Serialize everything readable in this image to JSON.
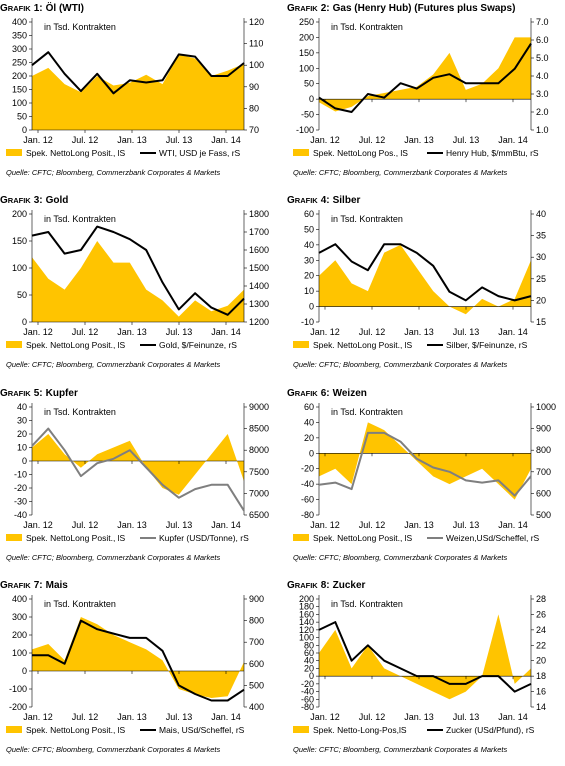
{
  "colors": {
    "area": "#FFC400",
    "line_black": "#000000",
    "line_gray": "#7f7f7f",
    "axis": "#000000",
    "source_text": "#000000"
  },
  "charts": [
    {
      "prefix": "G",
      "prefix_small": "RAFIK",
      "number": "1:",
      "title": "Öl (WTI)",
      "unit_label": "in Tsd. Kontrakten",
      "left_axis": {
        "ticks": [
          0,
          50,
          100,
          150,
          200,
          250,
          300,
          350,
          400
        ],
        "min": 0,
        "max": 400
      },
      "right_axis": {
        "ticks": [
          70,
          80,
          90,
          100,
          110,
          120
        ],
        "min": 70,
        "max": 120
      },
      "x_labels": [
        "Jan. 12",
        "Jul. 12",
        "Jan. 13",
        "Jul. 13",
        "Jan. 14"
      ],
      "legend": {
        "area": "Spek. NettoLong Posit., lS",
        "line": "WTI, USD je Fass, rS"
      },
      "line_color": "black",
      "source": "Quelle: CFTC; Bloomberg, Commerzbank Corporates & Markets"
    },
    {
      "prefix": "G",
      "prefix_small": "RAFIK",
      "number": "2:",
      "title": "Gas (Henry Hub) (Futures plus Swaps)",
      "unit_label": "in Tsd. Kontrakten",
      "left_axis": {
        "ticks": [
          -100,
          -50,
          0,
          50,
          100,
          150,
          200,
          250
        ],
        "min": -100,
        "max": 250
      },
      "right_axis": {
        "ticks": [
          1.0,
          2.0,
          3.0,
          4.0,
          5.0,
          6.0,
          7.0
        ],
        "min": 1.0,
        "max": 7.0
      },
      "x_labels": [
        "Jan. 12",
        "Jul. 12",
        "Jan. 13",
        "Jul. 13",
        "Jan. 14"
      ],
      "legend": {
        "area": "Spek. NettoLong Pos., lS",
        "line": "Henry Hub, $/mmBtu, rS"
      },
      "line_color": "black",
      "source": "Quelle: CFTC; Bloomberg, Commerzbank Corporates & Markets"
    },
    {
      "prefix": "G",
      "prefix_small": "RAFIK",
      "number": "3:",
      "title": "Gold",
      "unit_label": "in Tsd. Kontrakten",
      "left_axis": {
        "ticks": [
          0,
          50,
          100,
          150,
          200
        ],
        "min": 0,
        "max": 200
      },
      "right_axis": {
        "ticks": [
          1200,
          1300,
          1400,
          1500,
          1600,
          1700,
          1800
        ],
        "min": 1200,
        "max": 1800
      },
      "x_labels": [
        "Jan. 12",
        "Jul. 12",
        "Jan. 13",
        "Jul. 13",
        "Jan. 14"
      ],
      "legend": {
        "area": "Spek. NettoLong Posit., lS",
        "line": "Gold, $/Feinunze, rS"
      },
      "line_color": "black",
      "source": "Quelle: CFTC; Bloomberg, Commerzbank Corporates & Markets"
    },
    {
      "prefix": "G",
      "prefix_small": "RAFIK",
      "number": "4:",
      "title": "Silber",
      "unit_label": "in Tsd. Kontrakten",
      "left_axis": {
        "ticks": [
          -10,
          0,
          10,
          20,
          30,
          40,
          50,
          60
        ],
        "min": -10,
        "max": 60
      },
      "right_axis": {
        "ticks": [
          15,
          20,
          25,
          30,
          35,
          40
        ],
        "min": 15,
        "max": 40
      },
      "x_labels": [
        "Jan. 12",
        "Jul. 12",
        "Jan. 13",
        "Jul. 13",
        "Jan. 14"
      ],
      "legend": {
        "area": "Spek. NettoLong Posit., lS",
        "line": "Silber, $/Feinunze, rS"
      },
      "line_color": "black",
      "source": "Quelle: CFTC; Bloomberg, Commerzbank Corporates & Markets"
    },
    {
      "prefix": "G",
      "prefix_small": "RAFIK",
      "number": "5:",
      "title": "Kupfer",
      "unit_label": "in Tsd. Kontrakten",
      "left_axis": {
        "ticks": [
          -40,
          -30,
          -20,
          -10,
          0,
          10,
          20,
          30,
          40
        ],
        "min": -40,
        "max": 40
      },
      "right_axis": {
        "ticks": [
          6500,
          7000,
          7500,
          8000,
          8500,
          9000
        ],
        "min": 6500,
        "max": 9000
      },
      "x_labels": [
        "Jan. 12",
        "Jul. 12",
        "Jan. 13",
        "Jul. 13",
        "Jan. 14"
      ],
      "legend": {
        "area": "Spek. NettoLong Posit., lS",
        "line": "Kupfer (USD/Tonne), rS"
      },
      "line_color": "gray",
      "source": "Quelle: CFTC; Bloomberg, Commerzbank Corporates & Markets"
    },
    {
      "prefix": "G",
      "prefix_small": "RAFIK",
      "number": "6:",
      "title": "Weizen",
      "unit_label": "in Tsd. Kontrakten",
      "left_axis": {
        "ticks": [
          -80,
          -60,
          -40,
          -20,
          0,
          20,
          40,
          60
        ],
        "min": -80,
        "max": 60
      },
      "right_axis": {
        "ticks": [
          500,
          600,
          700,
          800,
          900,
          1000
        ],
        "min": 500,
        "max": 1000
      },
      "x_labels": [
        "Jan. 12",
        "Jul. 12",
        "Jan. 13",
        "Jul. 13",
        "Jan. 14"
      ],
      "legend": {
        "area": "Spek. NettoLong Posit., lS",
        "line": "Weizen,USd/Scheffel, rS"
      },
      "line_color": "gray",
      "source": "Quelle: CFTC; Bloomberg, Commerzbank Corporates & Markets"
    },
    {
      "prefix": "G",
      "prefix_small": "RAFIK",
      "number": "7:",
      "title": "Mais",
      "unit_label": "in Tsd. Kontrakten",
      "left_axis": {
        "ticks": [
          -200,
          -100,
          0,
          100,
          200,
          300,
          400
        ],
        "min": -200,
        "max": 400
      },
      "right_axis": {
        "ticks": [
          400,
          500,
          600,
          700,
          800,
          900
        ],
        "min": 400,
        "max": 900
      },
      "x_labels": [
        "Jan. 12",
        "Jul. 12",
        "Jan. 13",
        "Jul. 13",
        "Jan. 14"
      ],
      "legend": {
        "area": "Spek. NettoLong Posit., lS",
        "line": "Mais, USd/Scheffel, rS"
      },
      "line_color": "black",
      "source": "Quelle: CFTC; Bloomberg, Commerzbank Corporates & Markets"
    },
    {
      "prefix": "G",
      "prefix_small": "RAFIK",
      "number": "8:",
      "title": "Zucker",
      "unit_label": "in Tsd. Kontrakten",
      "left_axis": {
        "ticks": [
          -80,
          -60,
          -40,
          -20,
          0,
          20,
          40,
          60,
          80,
          100,
          120,
          140,
          160,
          180,
          200
        ],
        "min": -80,
        "max": 200
      },
      "right_axis": {
        "ticks": [
          14,
          16,
          18,
          20,
          22,
          24,
          26,
          28
        ],
        "min": 14,
        "max": 28
      },
      "x_labels": [
        "Jan. 12",
        "Jul. 12",
        "Jan. 13",
        "Jul. 13",
        "Jan. 14"
      ],
      "legend": {
        "area": "Spek. Netto-Long-Pos,lS",
        "line": "Zucker (USd/Pfund), rS"
      },
      "line_color": "black",
      "source": "Quelle: CFTC; Bloomberg, Commerzbank Corporates & Markets"
    }
  ],
  "chart_data": [
    {
      "type": "area",
      "title": "Öl (WTI)",
      "x": [
        "Jan. 12",
        "Mar. 12",
        "Mai 12",
        "Jul. 12",
        "Sep. 12",
        "Nov. 12",
        "Jan. 13",
        "Mar. 13",
        "Mai 13",
        "Jul. 13",
        "Sep. 13",
        "Nov. 13",
        "Jan. 14",
        "Mar. 14"
      ],
      "series": [
        {
          "name": "Spek. NettoLong Posit., lS",
          "axis": "left",
          "values": [
            200,
            230,
            170,
            140,
            200,
            165,
            175,
            205,
            170,
            280,
            265,
            200,
            220,
            245
          ]
        },
        {
          "name": "WTI, USD je Fass, rS",
          "axis": "right",
          "values": [
            100,
            106,
            96,
            88,
            96,
            87,
            93,
            92,
            93,
            105,
            104,
            95,
            95,
            101
          ]
        }
      ],
      "ylim_left": [
        0,
        400
      ],
      "ylim_right": [
        70,
        120
      ]
    },
    {
      "type": "area",
      "title": "Gas (Henry Hub) (Futures plus Swaps)",
      "x": [
        "Jan. 12",
        "Mar. 12",
        "Mai 12",
        "Jul. 12",
        "Sep. 12",
        "Nov. 12",
        "Jan. 13",
        "Mar. 13",
        "Mai 13",
        "Jul. 13",
        "Sep. 13",
        "Nov. 13",
        "Jan. 14",
        "Mar. 14"
      ],
      "series": [
        {
          "name": "Spek. NettoLong Pos., lS",
          "axis": "left",
          "values": [
            -10,
            -40,
            -25,
            10,
            20,
            30,
            40,
            80,
            150,
            30,
            50,
            100,
            200,
            200
          ]
        },
        {
          "name": "Henry Hub, $/mmBtu, rS",
          "axis": "right",
          "values": [
            2.8,
            2.2,
            2.0,
            3.0,
            2.8,
            3.6,
            3.3,
            3.9,
            4.1,
            3.6,
            3.6,
            3.6,
            4.4,
            5.8
          ]
        }
      ],
      "ylim_left": [
        -100,
        250
      ],
      "ylim_right": [
        1.0,
        7.0
      ]
    },
    {
      "type": "area",
      "title": "Gold",
      "x": [
        "Jan. 12",
        "Mar. 12",
        "Mai 12",
        "Jul. 12",
        "Sep. 12",
        "Nov. 12",
        "Jan. 13",
        "Mar. 13",
        "Mai 13",
        "Jul. 13",
        "Sep. 13",
        "Nov. 13",
        "Jan. 14",
        "Mar. 14"
      ],
      "series": [
        {
          "name": "Spek. NettoLong Posit., lS",
          "axis": "left",
          "values": [
            120,
            80,
            60,
            100,
            150,
            110,
            110,
            60,
            40,
            10,
            40,
            20,
            30,
            60
          ]
        },
        {
          "name": "Gold, $/Feinunze, rS",
          "axis": "right",
          "values": [
            1680,
            1700,
            1580,
            1600,
            1730,
            1700,
            1660,
            1600,
            1420,
            1270,
            1360,
            1280,
            1240,
            1330
          ]
        }
      ],
      "ylim_left": [
        0,
        200
      ],
      "ylim_right": [
        1200,
        1800
      ]
    },
    {
      "type": "area",
      "title": "Silber",
      "x": [
        "Jan. 12",
        "Mar. 12",
        "Mai 12",
        "Jul. 12",
        "Sep. 12",
        "Nov. 12",
        "Jan. 13",
        "Mar. 13",
        "Mai 13",
        "Jul. 13",
        "Sep. 13",
        "Nov. 13",
        "Jan. 14",
        "Mar. 14"
      ],
      "series": [
        {
          "name": "Spek. NettoLong Posit., lS",
          "axis": "left",
          "values": [
            20,
            30,
            15,
            10,
            35,
            40,
            25,
            10,
            0,
            -5,
            5,
            0,
            5,
            30
          ]
        },
        {
          "name": "Silber, $/Feinunze, rS",
          "axis": "right",
          "values": [
            31,
            33,
            29,
            27,
            33,
            33,
            31,
            28,
            22,
            20,
            23,
            21,
            20,
            21
          ]
        }
      ],
      "ylim_left": [
        -10,
        60
      ],
      "ylim_right": [
        15,
        40
      ]
    },
    {
      "type": "area",
      "title": "Kupfer",
      "x": [
        "Jan. 12",
        "Mar. 12",
        "Mai 12",
        "Jul. 12",
        "Sep. 12",
        "Nov. 12",
        "Jan. 13",
        "Mar. 13",
        "Mai 13",
        "Jul. 13",
        "Sep. 13",
        "Nov. 13",
        "Jan. 14",
        "Mar. 14"
      ],
      "series": [
        {
          "name": "Spek. NettoLong Posit., lS",
          "axis": "left",
          "values": [
            10,
            20,
            5,
            -5,
            5,
            10,
            15,
            -5,
            -20,
            -25,
            -10,
            5,
            20,
            -15
          ]
        },
        {
          "name": "Kupfer (USD/Tonne), rS",
          "axis": "right",
          "values": [
            8100,
            8500,
            8000,
            7400,
            7700,
            7800,
            8000,
            7600,
            7200,
            6900,
            7100,
            7200,
            7200,
            6600
          ]
        }
      ],
      "ylim_left": [
        -40,
        40
      ],
      "ylim_right": [
        6500,
        9000
      ]
    },
    {
      "type": "area",
      "title": "Weizen",
      "x": [
        "Jan. 12",
        "Mar. 12",
        "Mai 12",
        "Jul. 12",
        "Sep. 12",
        "Nov. 12",
        "Jan. 13",
        "Mar. 13",
        "Mai 13",
        "Jul. 13",
        "Sep. 13",
        "Nov. 13",
        "Jan. 14",
        "Mar. 14"
      ],
      "series": [
        {
          "name": "Spek. NettoLong Posit., lS",
          "axis": "left",
          "values": [
            -30,
            -20,
            -40,
            40,
            30,
            10,
            -10,
            -30,
            -40,
            -30,
            -20,
            -40,
            -60,
            -20
          ]
        },
        {
          "name": "Weizen,USd/Scheffel, rS",
          "axis": "right",
          "values": [
            640,
            650,
            620,
            880,
            880,
            840,
            760,
            720,
            700,
            660,
            650,
            660,
            590,
            680
          ]
        }
      ],
      "ylim_left": [
        -80,
        60
      ],
      "ylim_right": [
        500,
        1000
      ]
    },
    {
      "type": "area",
      "title": "Mais",
      "x": [
        "Jan. 12",
        "Mar. 12",
        "Mai 12",
        "Jul. 12",
        "Sep. 12",
        "Nov. 12",
        "Jan. 13",
        "Mar. 13",
        "Mai 13",
        "Jul. 13",
        "Sep. 13",
        "Nov. 13",
        "Jan. 14",
        "Mar. 14"
      ],
      "series": [
        {
          "name": "Spek. NettoLong Posit., lS",
          "axis": "left",
          "values": [
            120,
            150,
            60,
            300,
            260,
            200,
            160,
            120,
            60,
            -100,
            -130,
            -150,
            -140,
            50
          ]
        },
        {
          "name": "Mais, USd/Scheffel, rS",
          "axis": "right",
          "values": [
            640,
            640,
            600,
            800,
            760,
            740,
            720,
            720,
            660,
            500,
            460,
            430,
            430,
            480
          ]
        }
      ],
      "ylim_left": [
        -200,
        400
      ],
      "ylim_right": [
        400,
        900
      ]
    },
    {
      "type": "area",
      "title": "Zucker",
      "x": [
        "Jan. 12",
        "Mar. 12",
        "Mai 12",
        "Jul. 12",
        "Sep. 12",
        "Nov. 12",
        "Jan. 13",
        "Mar. 13",
        "Mai 13",
        "Jul. 13",
        "Sep. 13",
        "Nov. 13",
        "Jan. 14",
        "Mar. 14"
      ],
      "series": [
        {
          "name": "Spek. Netto-Long-Pos,lS",
          "axis": "left",
          "values": [
            60,
            120,
            20,
            80,
            20,
            0,
            -20,
            -40,
            -60,
            -40,
            0,
            160,
            -20,
            20
          ]
        },
        {
          "name": "Zucker (USd/Pfund), rS",
          "axis": "right",
          "values": [
            24,
            25,
            20,
            22,
            20,
            19,
            18,
            18,
            17,
            17,
            18,
            18,
            16,
            17
          ]
        }
      ],
      "ylim_left": [
        -80,
        200
      ],
      "ylim_right": [
        14,
        28
      ]
    }
  ]
}
